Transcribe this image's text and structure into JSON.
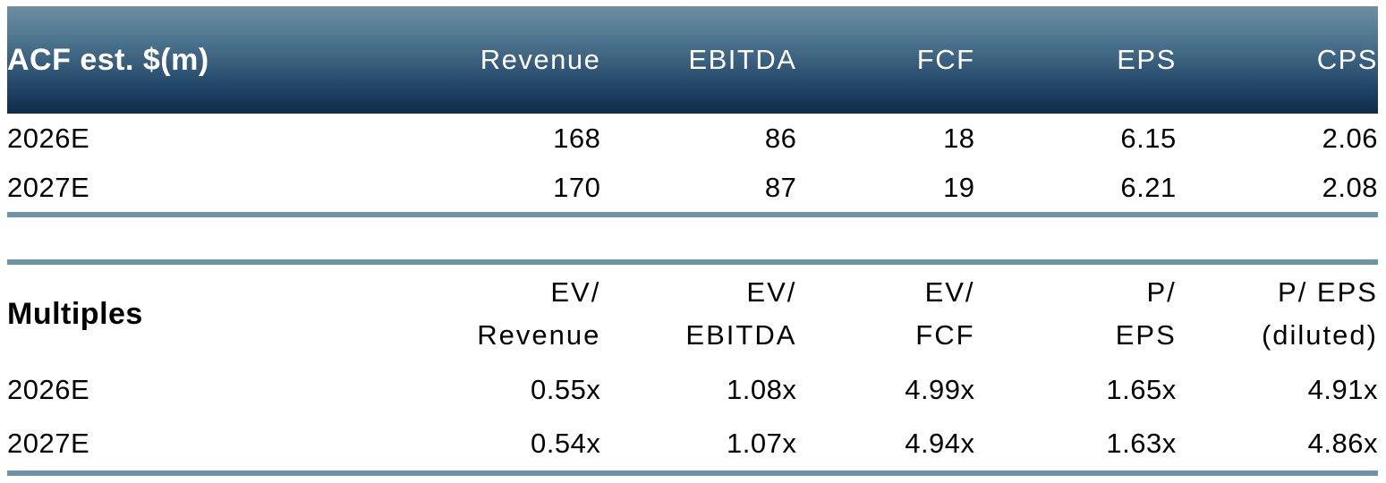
{
  "colors": {
    "header_gradient_top": "#6e8fa2",
    "header_gradient_bottom": "#0f2c48",
    "rule": "#6e93a8",
    "header_text": "#ffffff",
    "body_text": "#000000",
    "background": "#ffffff"
  },
  "estimates": {
    "title": "ACF est. $(m)",
    "columns": [
      "Revenue",
      "EBITDA",
      "FCF",
      "EPS",
      "CPS"
    ],
    "rows": [
      {
        "label": "2026E",
        "values": [
          "168",
          "86",
          "18",
          "6.15",
          "2.06"
        ]
      },
      {
        "label": "2027E",
        "values": [
          "170",
          "87",
          "19",
          "6.21",
          "2.08"
        ]
      }
    ]
  },
  "multiples": {
    "title": "Multiples",
    "columns": [
      {
        "line1": "EV/",
        "line2": "Revenue"
      },
      {
        "line1": "EV/",
        "line2": "EBITDA"
      },
      {
        "line1": "EV/",
        "line2": "FCF"
      },
      {
        "line1": "P/",
        "line2": "EPS"
      },
      {
        "line1": "P/ EPS",
        "line2": "(diluted)"
      }
    ],
    "rows": [
      {
        "label": "2026E",
        "values": [
          "0.55x",
          "1.08x",
          "4.99x",
          "1.65x",
          "4.91x"
        ]
      },
      {
        "label": "2027E",
        "values": [
          "0.54x",
          "1.07x",
          "4.94x",
          "1.63x",
          "4.86x"
        ]
      }
    ]
  }
}
